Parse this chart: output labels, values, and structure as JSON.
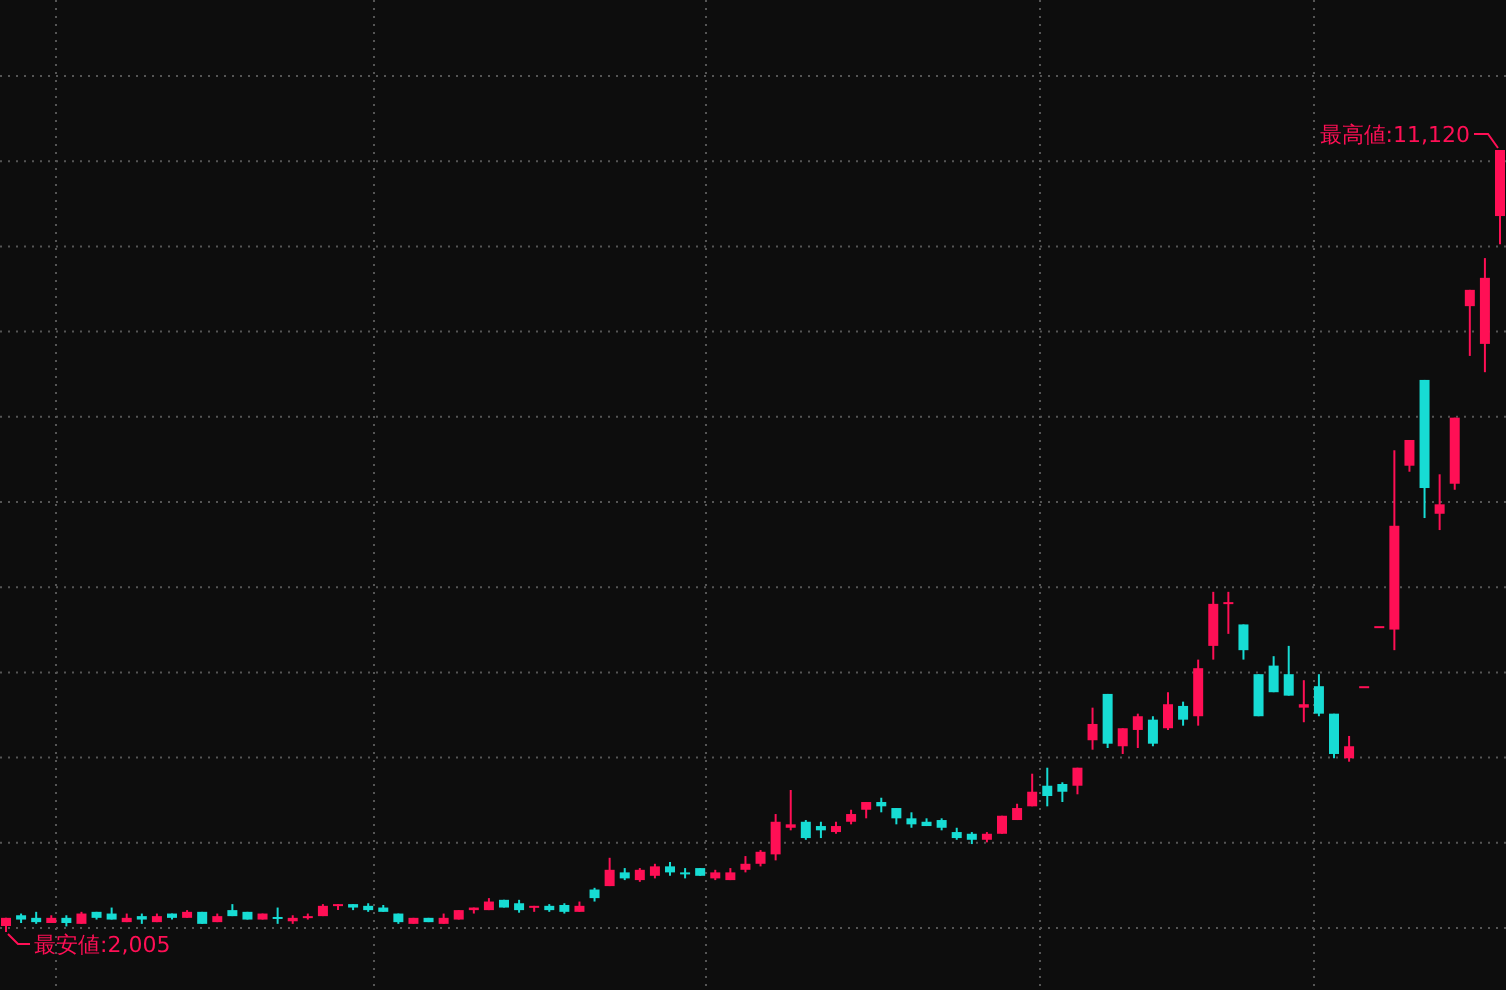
{
  "chart_data": {
    "type": "candlestick",
    "grid": true,
    "annotations": [
      "最高値:11,120",
      "最安値:2,005"
    ],
    "categories": [
      null,
      null,
      null,
      null,
      null,
      null,
      null,
      null,
      null,
      null,
      null,
      null,
      null,
      null,
      null,
      null,
      null,
      null,
      null,
      null,
      null,
      null,
      null,
      null,
      null,
      null,
      null,
      null,
      null,
      null,
      null,
      null,
      null,
      null,
      null,
      null,
      null,
      null,
      null,
      null,
      null,
      null,
      null,
      null,
      null,
      null,
      null,
      null,
      null,
      null,
      null,
      null,
      null,
      null,
      null,
      null,
      null,
      null,
      null,
      null,
      null,
      null,
      null,
      null,
      null,
      null,
      null,
      null,
      null,
      null,
      null,
      null,
      null,
      null,
      null,
      null,
      null,
      null,
      null,
      null,
      null,
      null,
      null,
      null,
      null,
      null,
      null,
      null,
      null,
      null,
      null,
      null,
      null,
      null,
      null,
      null,
      null,
      null,
      null,
      null
    ],
    "ohlc": [
      [
        2075,
        2170,
        2005,
        2170
      ],
      [
        2200,
        2220,
        2110,
        2150
      ],
      [
        2170,
        2240,
        2100,
        2120
      ],
      [
        2110,
        2200,
        2110,
        2170
      ],
      [
        2170,
        2200,
        2070,
        2110
      ],
      [
        2100,
        2240,
        2100,
        2220
      ],
      [
        2240,
        2240,
        2150,
        2170
      ],
      [
        2220,
        2290,
        2150,
        2150
      ],
      [
        2120,
        2220,
        2120,
        2170
      ],
      [
        2190,
        2220,
        2100,
        2150
      ],
      [
        2120,
        2220,
        2120,
        2190
      ],
      [
        2220,
        2220,
        2150,
        2170
      ],
      [
        2170,
        2260,
        2170,
        2240
      ],
      [
        2240,
        2240,
        2100,
        2100
      ],
      [
        2120,
        2220,
        2120,
        2190
      ],
      [
        2260,
        2330,
        2190,
        2190
      ],
      [
        2240,
        2240,
        2150,
        2150
      ],
      [
        2150,
        2220,
        2150,
        2220
      ],
      [
        2180,
        2290,
        2100,
        2160
      ],
      [
        2130,
        2200,
        2100,
        2170
      ],
      [
        2170,
        2220,
        2150,
        2190
      ],
      [
        2190,
        2330,
        2190,
        2310
      ],
      [
        2310,
        2330,
        2260,
        2330
      ],
      [
        2330,
        2330,
        2260,
        2290
      ],
      [
        2310,
        2340,
        2240,
        2260
      ],
      [
        2290,
        2320,
        2240,
        2240
      ],
      [
        2220,
        2220,
        2100,
        2120
      ],
      [
        2100,
        2170,
        2100,
        2170
      ],
      [
        2170,
        2170,
        2120,
        2120
      ],
      [
        2100,
        2220,
        2100,
        2170
      ],
      [
        2150,
        2260,
        2150,
        2260
      ],
      [
        2260,
        2290,
        2220,
        2290
      ],
      [
        2260,
        2400,
        2260,
        2360
      ],
      [
        2380,
        2380,
        2290,
        2290
      ],
      [
        2340,
        2380,
        2230,
        2260
      ],
      [
        2290,
        2310,
        2240,
        2310
      ],
      [
        2310,
        2330,
        2240,
        2260
      ],
      [
        2320,
        2340,
        2220,
        2240
      ],
      [
        2240,
        2360,
        2240,
        2310
      ],
      [
        2500,
        2520,
        2360,
        2400
      ],
      [
        2540,
        2870,
        2540,
        2730
      ],
      [
        2700,
        2750,
        2610,
        2630
      ],
      [
        2610,
        2750,
        2590,
        2730
      ],
      [
        2660,
        2800,
        2630,
        2770
      ],
      [
        2770,
        2820,
        2660,
        2700
      ],
      [
        2700,
        2750,
        2630,
        2680
      ],
      [
        2750,
        2750,
        2660,
        2660
      ],
      [
        2630,
        2730,
        2610,
        2700
      ],
      [
        2610,
        2750,
        2610,
        2700
      ],
      [
        2730,
        2890,
        2700,
        2800
      ],
      [
        2800,
        2960,
        2770,
        2940
      ],
      [
        2910,
        3380,
        2840,
        3290
      ],
      [
        3220,
        3660,
        3190,
        3260
      ],
      [
        3290,
        3310,
        3080,
        3100
      ],
      [
        3240,
        3290,
        3100,
        3190
      ],
      [
        3170,
        3290,
        3150,
        3240
      ],
      [
        3290,
        3430,
        3260,
        3380
      ],
      [
        3430,
        3520,
        3330,
        3520
      ],
      [
        3520,
        3570,
        3400,
        3470
      ],
      [
        3450,
        3450,
        3260,
        3330
      ],
      [
        3330,
        3400,
        3220,
        3260
      ],
      [
        3290,
        3330,
        3240,
        3240
      ],
      [
        3310,
        3330,
        3190,
        3220
      ],
      [
        3170,
        3220,
        3080,
        3100
      ],
      [
        3150,
        3170,
        3030,
        3080
      ],
      [
        3080,
        3170,
        3050,
        3150
      ],
      [
        3150,
        3360,
        3150,
        3360
      ],
      [
        3310,
        3500,
        3310,
        3450
      ],
      [
        3470,
        3850,
        3470,
        3640
      ],
      [
        3710,
        3920,
        3470,
        3590
      ],
      [
        3730,
        3750,
        3520,
        3640
      ],
      [
        3710,
        3920,
        3610,
        3920
      ],
      [
        4240,
        4620,
        4130,
        4430
      ],
      [
        4780,
        4780,
        4150,
        4200
      ],
      [
        4170,
        4380,
        4080,
        4380
      ],
      [
        4360,
        4550,
        4150,
        4520
      ],
      [
        4480,
        4520,
        4170,
        4200
      ],
      [
        4380,
        4800,
        4360,
        4660
      ],
      [
        4640,
        4690,
        4410,
        4480
      ],
      [
        4520,
        5180,
        4410,
        5080
      ],
      [
        5340,
        5970,
        5180,
        5830
      ],
      [
        5830,
        5970,
        5480,
        5850
      ],
      [
        5590,
        5590,
        5180,
        5290
      ],
      [
        5010,
        5010,
        4520,
        4520
      ],
      [
        5110,
        5220,
        4800,
        4800
      ],
      [
        5010,
        5340,
        4760,
        4760
      ],
      [
        4620,
        4940,
        4450,
        4660
      ],
      [
        4870,
        5010,
        4520,
        4550
      ],
      [
        4550,
        4550,
        4030,
        4080
      ],
      [
        4030,
        4290,
        3990,
        4170
      ],
      [
        4870,
        4870,
        4870,
        4870
      ],
      [
        5570,
        5570,
        5570,
        5570
      ],
      [
        5530,
        7620,
        5290,
        6740
      ],
      [
        7440,
        7740,
        7370,
        7740
      ],
      [
        8440,
        8440,
        6830,
        7180
      ],
      [
        6880,
        7340,
        6690,
        6990
      ],
      [
        7230,
        8000,
        7160,
        8000
      ],
      [
        9300,
        9490,
        8720,
        9490
      ],
      [
        8860,
        9860,
        8530,
        9630
      ],
      [
        10350,
        11120,
        10020,
        11120
      ]
    ],
    "colors": [
      "#ff0f55",
      "#17dcd4",
      "#17dcd4",
      "#ff0f55",
      "#17dcd4",
      "#ff0f55",
      "#17dcd4",
      "#17dcd4",
      "#ff0f55",
      "#17dcd4",
      "#ff0f55",
      "#17dcd4",
      "#ff0f55",
      "#17dcd4",
      "#ff0f55",
      "#17dcd4",
      "#17dcd4",
      "#ff0f55",
      "#17dcd4",
      "#ff0f55",
      "#ff0f55",
      "#ff0f55",
      "#ff0f55",
      "#17dcd4",
      "#17dcd4",
      "#17dcd4",
      "#17dcd4",
      "#ff0f55",
      "#17dcd4",
      "#ff0f55",
      "#ff0f55",
      "#ff0f55",
      "#ff0f55",
      "#17dcd4",
      "#17dcd4",
      "#ff0f55",
      "#17dcd4",
      "#17dcd4",
      "#ff0f55",
      "#17dcd4",
      "#ff0f55",
      "#17dcd4",
      "#ff0f55",
      "#ff0f55",
      "#17dcd4",
      "#17dcd4",
      "#17dcd4",
      "#ff0f55",
      "#ff0f55",
      "#ff0f55",
      "#ff0f55",
      "#ff0f55",
      "#ff0f55",
      "#17dcd4",
      "#17dcd4",
      "#ff0f55",
      "#ff0f55",
      "#ff0f55",
      "#17dcd4",
      "#17dcd4",
      "#17dcd4",
      "#17dcd4",
      "#17dcd4",
      "#17dcd4",
      "#17dcd4",
      "#ff0f55",
      "#ff0f55",
      "#ff0f55",
      "#ff0f55",
      "#17dcd4",
      "#17dcd4",
      "#ff0f55",
      "#ff0f55",
      "#17dcd4",
      "#ff0f55",
      "#ff0f55",
      "#17dcd4",
      "#ff0f55",
      "#17dcd4",
      "#ff0f55",
      "#ff0f55",
      "#ff0f55",
      "#17dcd4",
      "#17dcd4",
      "#17dcd4",
      "#17dcd4",
      "#ff0f55",
      "#17dcd4",
      "#17dcd4",
      "#ff0f55",
      "#ff0f55",
      "#ff0f55",
      "#ff0f55",
      "#ff0f55",
      "#17dcd4",
      "#ff0f55",
      "#ff0f55",
      "#ff0f55",
      "#ff0f55",
      "#ff0f55"
    ]
  }
}
